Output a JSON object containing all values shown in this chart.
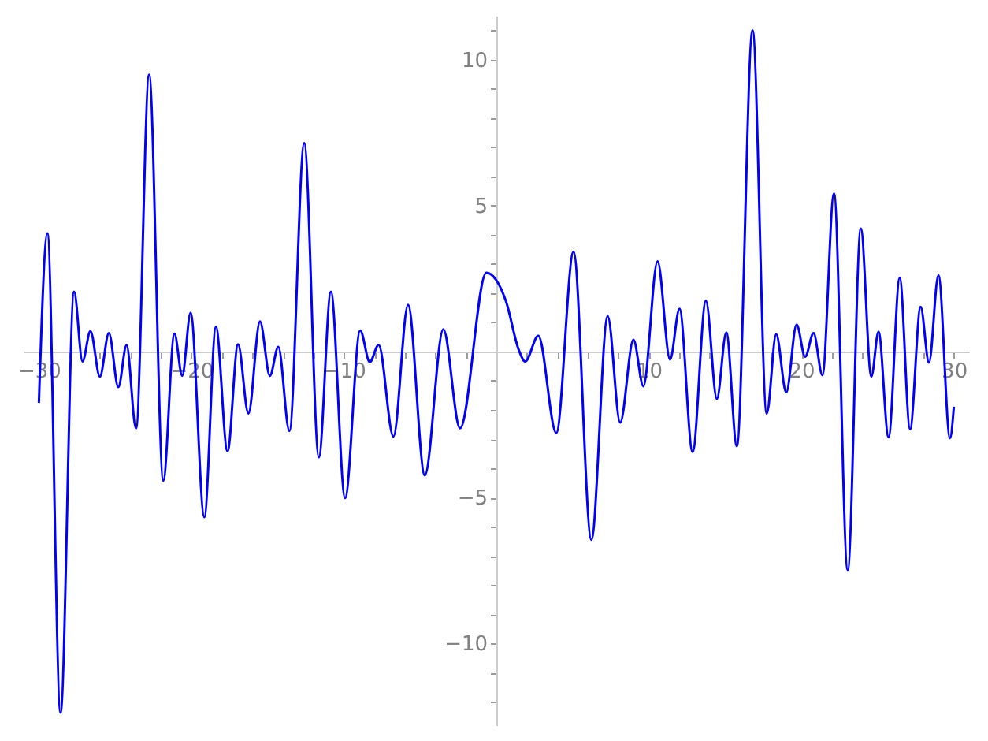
{
  "chart_data": {
    "type": "line",
    "x": [
      -30,
      -29.44,
      -28.58,
      -27.69,
      -27.14,
      -26.62,
      -26.0,
      -25.41,
      -24.79,
      -24.25,
      -23.63,
      -22.77,
      -21.84,
      -21.11,
      -20.6,
      -20.05,
      -19.15,
      -18.39,
      -17.63,
      -16.94,
      -16.26,
      -15.5,
      -14.85,
      -14.3,
      -13.57,
      -12.6,
      -11.64,
      -10.85,
      -9.92,
      -8.93,
      -8.3,
      -7.72,
      -6.75,
      -5.79,
      -4.69,
      -3.48,
      -2.38,
      -0.66,
      0.62,
      1.48,
      1.89,
      2.75,
      3.93,
      5.06,
      6.23,
      7.3,
      8.12,
      8.99,
      9.64,
      10.57,
      11.39,
      12.01,
      12.87,
      13.74,
      14.46,
      15.08,
      15.77,
      16.8,
      17.73,
      18.35,
      19.01,
      19.69,
      20.25,
      20.8,
      21.38,
      22.14,
      23.04,
      23.9,
      24.59,
      25.06,
      25.72,
      26.45,
      27.13,
      27.82,
      28.37,
      28.99,
      29.75,
      30
    ],
    "series": [
      {
        "color": "#0000ff",
        "values": [
          -1.76,
          4.05,
          -12.37,
          2.05,
          -0.34,
          0.7,
          -0.86,
          0.63,
          -1.22,
          0.22,
          -2.63,
          9.48,
          -4.42,
          0.61,
          -0.83,
          1.33,
          -5.67,
          0.85,
          -3.42,
          0.25,
          -2.12,
          1.03,
          -0.83,
          0.16,
          -2.72,
          7.14,
          -3.62,
          2.05,
          -5.02,
          0.72,
          -0.36,
          0.23,
          -2.91,
          1.6,
          -4.24,
          0.76,
          -2.63,
          2.7,
          1.74,
          0.04,
          -0.34,
          0.54,
          -2.79,
          3.42,
          -6.45,
          1.21,
          -2.43,
          0.4,
          -1.19,
          3.09,
          -0.27,
          1.46,
          -3.44,
          1.74,
          -1.62,
          0.65,
          -3.24,
          11.0,
          -2.12,
          0.59,
          -1.4,
          0.92,
          -0.18,
          0.63,
          -0.81,
          5.41,
          -7.48,
          4.21,
          -0.86,
          0.68,
          -2.93,
          2.52,
          -2.66,
          1.53,
          -0.38,
          2.61,
          -2.97,
          -1.89
        ]
      }
    ],
    "xlim": [
      -31,
      31
    ],
    "ylim": [
      -12.8,
      11.5
    ],
    "xticks": [
      {
        "value": -30,
        "label": "−30"
      },
      {
        "value": -28,
        "label": null
      },
      {
        "value": -26,
        "label": null
      },
      {
        "value": -24,
        "label": null
      },
      {
        "value": -22,
        "label": null
      },
      {
        "value": -20,
        "label": "−20"
      },
      {
        "value": -18,
        "label": null
      },
      {
        "value": -16,
        "label": null
      },
      {
        "value": -14,
        "label": null
      },
      {
        "value": -12,
        "label": null
      },
      {
        "value": -10,
        "label": "−10"
      },
      {
        "value": -8,
        "label": null
      },
      {
        "value": -6,
        "label": null
      },
      {
        "value": -4,
        "label": null
      },
      {
        "value": -2,
        "label": null
      },
      {
        "value": 2,
        "label": null
      },
      {
        "value": 4,
        "label": null
      },
      {
        "value": 6,
        "label": null
      },
      {
        "value": 8,
        "label": null
      },
      10,
      {
        "value": 12,
        "label": null
      },
      {
        "value": 14,
        "label": null
      },
      {
        "value": 16,
        "label": null
      },
      {
        "value": 18,
        "label": null
      },
      20,
      {
        "value": 22,
        "label": null
      },
      {
        "value": 24,
        "label": null
      },
      {
        "value": 26,
        "label": null
      },
      {
        "value": 28,
        "label": null
      },
      30
    ],
    "yticks": [
      {
        "value": -12,
        "label": null
      },
      {
        "value": -11,
        "label": null
      },
      {
        "value": -10,
        "label": "−10"
      },
      {
        "value": -9,
        "label": null
      },
      {
        "value": -8,
        "label": null
      },
      {
        "value": -7,
        "label": null
      },
      {
        "value": -6,
        "label": null
      },
      {
        "value": -5,
        "label": "−5"
      },
      {
        "value": -4,
        "label": null
      },
      {
        "value": -3,
        "label": null
      },
      {
        "value": -2,
        "label": null
      },
      {
        "value": -1,
        "label": null
      },
      {
        "value": 1,
        "label": null
      },
      {
        "value": 2,
        "label": null
      },
      {
        "value": 3,
        "label": null
      },
      {
        "value": 4,
        "label": null
      },
      5,
      {
        "value": 6,
        "label": null
      },
      {
        "value": 7,
        "label": null
      },
      {
        "value": 8,
        "label": null
      },
      {
        "value": 9,
        "label": null
      },
      10,
      {
        "value": 11,
        "label": null
      }
    ],
    "grid": false,
    "marker": "none",
    "line_style": "solid"
  }
}
